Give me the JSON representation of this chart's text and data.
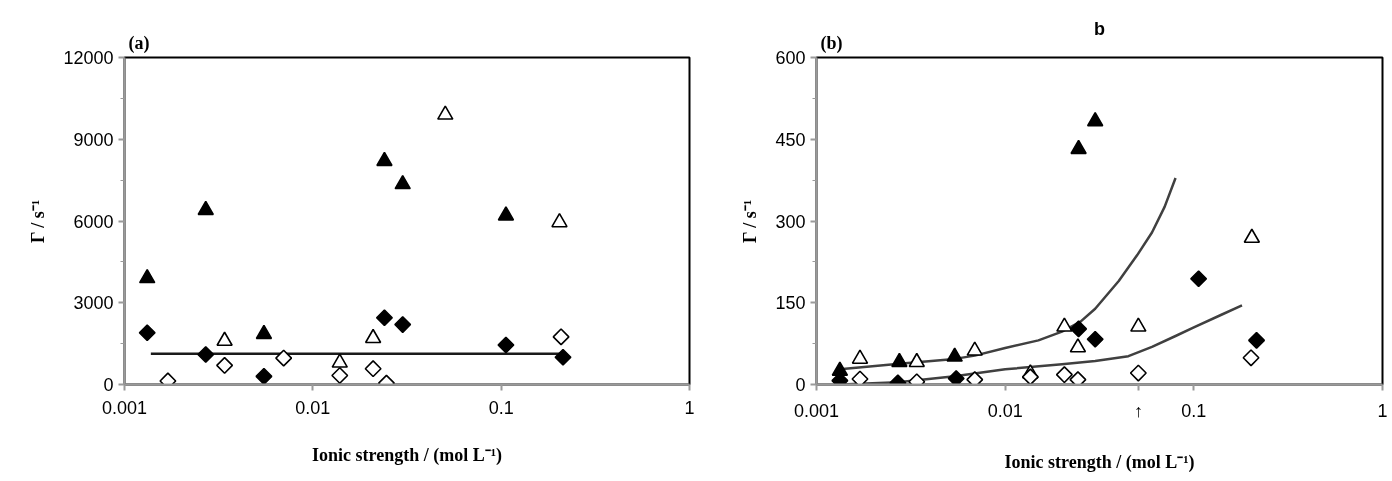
{
  "chart_data": [
    {
      "type": "scatter",
      "annotations": [
        "(a)"
      ],
      "xlabel": "Ionic strength / (mol L⁻¹)",
      "ylabel": "Γ / s⁻¹",
      "log": "x",
      "xlim": [
        0.001,
        1
      ],
      "xticks": [
        0.001,
        0.01,
        0.1,
        1
      ],
      "ylim": [
        0,
        12000
      ],
      "yticks": [
        0,
        3000,
        6000,
        9000,
        12000
      ],
      "grid": false,
      "series": [
        {
          "type": "line",
          "color": "#1a1a1a",
          "x": [
            0.00138,
            0.213
          ],
          "values": [
            1130,
            1130
          ]
        },
        {
          "color": "#000000",
          "marker": "triangle",
          "x": [
            0.00132,
            0.0027,
            0.0055,
            0.024,
            0.03,
            0.106
          ],
          "values": [
            3900,
            6400,
            1850,
            8200,
            7350,
            6200
          ]
        },
        {
          "color": "#ffffff",
          "marker": "triangle",
          "x": [
            0.0034,
            0.0139,
            0.0209,
            0.0505,
            0.204
          ],
          "values": [
            1600,
            800,
            1700,
            9900,
            5950
          ]
        },
        {
          "color": "#000000",
          "marker": "diamond",
          "x": [
            0.00132,
            0.0027,
            0.0055,
            0.024,
            0.03,
            0.106,
            0.213
          ],
          "values": [
            1900,
            1100,
            300,
            2450,
            2200,
            1450,
            1000
          ]
        },
        {
          "color": "#ffffff",
          "marker": "diamond",
          "x": [
            0.0017,
            0.0034,
            0.007,
            0.0139,
            0.0209,
            0.0246,
            0.208
          ],
          "values": [
            130,
            700,
            970,
            330,
            580,
            50,
            1750
          ]
        }
      ]
    },
    {
      "type": "scatter",
      "title": "b",
      "annotations": [
        "(b)",
        "↑"
      ],
      "xlabel": "Ionic strength / (mol L⁻¹)",
      "ylabel": "Γ / s⁻¹",
      "log": "x",
      "xlim": [
        0.001,
        1
      ],
      "xticks": [
        0.001,
        0.01,
        0.1,
        1
      ],
      "ylim": [
        0,
        600
      ],
      "yticks": [
        0,
        150,
        300,
        450,
        600
      ],
      "grid": false,
      "series": [
        {
          "type": "line",
          "color": "#404040",
          "x": [
            0.00133,
            0.00275,
            0.0054,
            0.0069,
            0.01,
            0.015,
            0.02,
            0.025,
            0.03,
            0.04,
            0.05,
            0.06,
            0.07,
            0.08
          ],
          "values": [
            28,
            38,
            47,
            53,
            67,
            81,
            97,
            115,
            139,
            190,
            237,
            279,
            326,
            379
          ]
        },
        {
          "type": "line",
          "color": "#404040",
          "x": [
            0.00135,
            0.0027,
            0.0054,
            0.01,
            0.02,
            0.03,
            0.045,
            0.06,
            0.08,
            0.1,
            0.14,
            0.18
          ],
          "values": [
            0,
            4,
            15,
            28,
            37,
            43,
            52,
            69,
            89,
            105,
            128,
            145
          ]
        },
        {
          "color": "#000000",
          "marker": "triangle",
          "x": [
            0.00133,
            0.00275,
            0.0054,
            0.0245,
            0.03
          ],
          "values": [
            25,
            41,
            51,
            432,
            483
          ]
        },
        {
          "color": "#ffffff",
          "marker": "triangle",
          "x": [
            0.0017,
            0.0034,
            0.0069,
            0.0136,
            0.0206,
            0.0243,
            0.0508,
            0.203
          ],
          "values": [
            47,
            41,
            62,
            20,
            106,
            68,
            106,
            269
          ]
        },
        {
          "color": "#000000",
          "marker": "diamond",
          "x": [
            0.00133,
            0.0027,
            0.0055,
            0.0245,
            0.03,
            0.106,
            0.215
          ],
          "values": [
            7,
            3,
            11,
            102,
            83,
            194,
            81
          ]
        },
        {
          "color": "#ffffff",
          "marker": "diamond",
          "x": [
            0.0017,
            0.0034,
            0.0069,
            0.0136,
            0.0206,
            0.0243,
            0.0508,
            0.201
          ],
          "values": [
            10,
            5,
            9,
            14,
            18,
            9,
            21,
            49
          ]
        }
      ]
    }
  ]
}
